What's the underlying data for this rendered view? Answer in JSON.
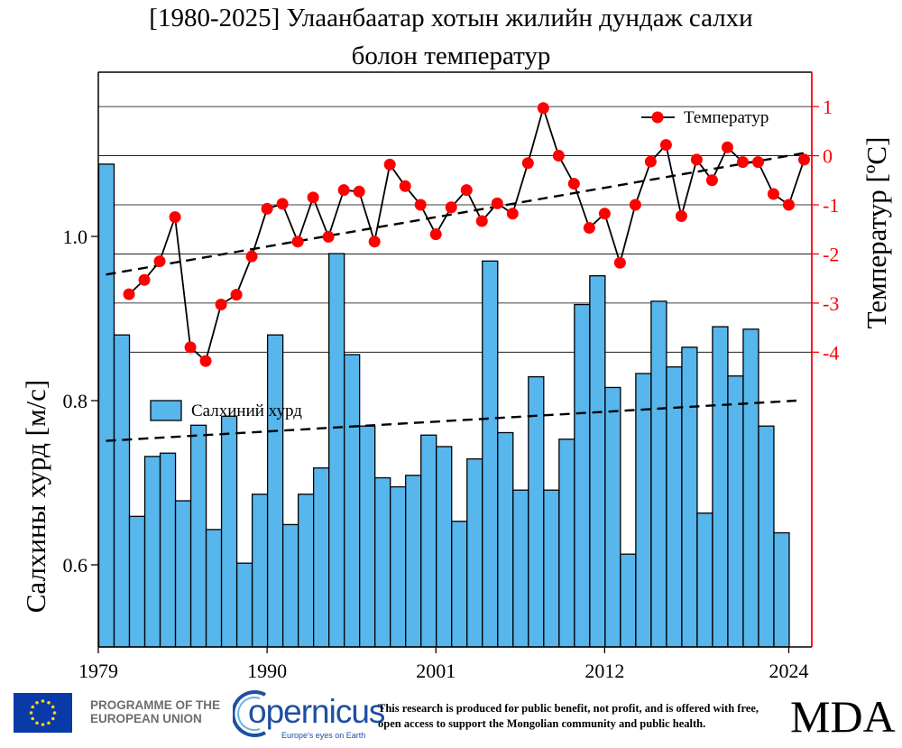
{
  "title_line1": "[1980-2025] Улаанбаатар хотын жилийн дундаж салхи",
  "title_line2": "болон температур",
  "chart_data": {
    "type": "bar",
    "x_ticks": [
      "1979",
      "1990",
      "2001",
      "2012",
      "2024"
    ],
    "years": [
      1980,
      1981,
      1982,
      1983,
      1984,
      1985,
      1986,
      1987,
      1988,
      1989,
      1990,
      1991,
      1992,
      1993,
      1994,
      1995,
      1996,
      1997,
      1998,
      1999,
      2000,
      2001,
      2002,
      2003,
      2004,
      2005,
      2006,
      2007,
      2008,
      2009,
      2010,
      2011,
      2012,
      2013,
      2014,
      2015,
      2016,
      2017,
      2018,
      2019,
      2020,
      2021,
      2022,
      2023,
      2024,
      2025
    ],
    "wind": {
      "name": "Салхиний хурд",
      "ylabel": "Салхины хурд [м/с]",
      "ylim": [
        0.5,
        1.2
      ],
      "ticks": [
        "0.6",
        "0.8",
        "1.0"
      ],
      "tick_values": [
        0.6,
        0.8,
        1.0
      ],
      "values": [
        1.088,
        0.88,
        0.659,
        0.732,
        0.736,
        0.678,
        0.77,
        0.643,
        0.781,
        0.602,
        0.686,
        0.88,
        0.649,
        0.686,
        0.718,
        0.979,
        0.856,
        0.769,
        0.706,
        0.695,
        0.709,
        0.758,
        0.744,
        0.653,
        0.729,
        0.97,
        0.761,
        0.691,
        0.829,
        0.691,
        0.753,
        0.917,
        0.952,
        0.816,
        0.613,
        0.833,
        0.921,
        0.841,
        0.865,
        0.663,
        0.89,
        0.83,
        0.887,
        0.769,
        0.639,
        0.0
      ],
      "trend": [
        0.751,
        0.8
      ],
      "color": "#57b6ec"
    },
    "temperature": {
      "name": "Температур",
      "ylabel": "Температур [ºC]",
      "ylim": [
        -10,
        1.7
      ],
      "ticks": [
        "1",
        "0",
        "-1",
        "-2",
        "-3",
        "-4"
      ],
      "tick_values": [
        1,
        0,
        -1,
        -2,
        -3,
        -4
      ],
      "values": [
        null,
        -2.82,
        -2.53,
        -2.15,
        -1.25,
        -3.9,
        -4.18,
        -3.03,
        -2.83,
        -2.05,
        -1.08,
        -0.98,
        -1.75,
        -0.85,
        -1.65,
        -0.7,
        -0.73,
        -1.75,
        -0.18,
        -0.62,
        -1.0,
        -1.6,
        -1.05,
        -0.7,
        -1.33,
        -0.97,
        -1.18,
        -0.15,
        0.97,
        0.0,
        -0.57,
        -1.47,
        -1.18,
        -2.18,
        -1.0,
        -0.12,
        0.22,
        -1.23,
        -0.08,
        -0.5,
        0.17,
        -0.13,
        -0.13,
        -0.78,
        -1.0,
        -0.08
      ],
      "trend": [
        -2.42,
        0.07
      ],
      "color": "#ff0000",
      "axis_color": "#ff0000"
    },
    "legend_position": "top-right"
  },
  "footer": {
    "programme_line1": "PROGRAMME OF THE",
    "programme_line2": "EUROPEAN UNION",
    "copernicus": "opernicus",
    "copernicus_tagline": "Europe's eyes on Earth",
    "disclaimer_line1": "This research is produced for public benefit, not profit, and is offered with free,",
    "disclaimer_line2": "open access to support the Mongolian community and public health.",
    "mda": "MDA"
  }
}
